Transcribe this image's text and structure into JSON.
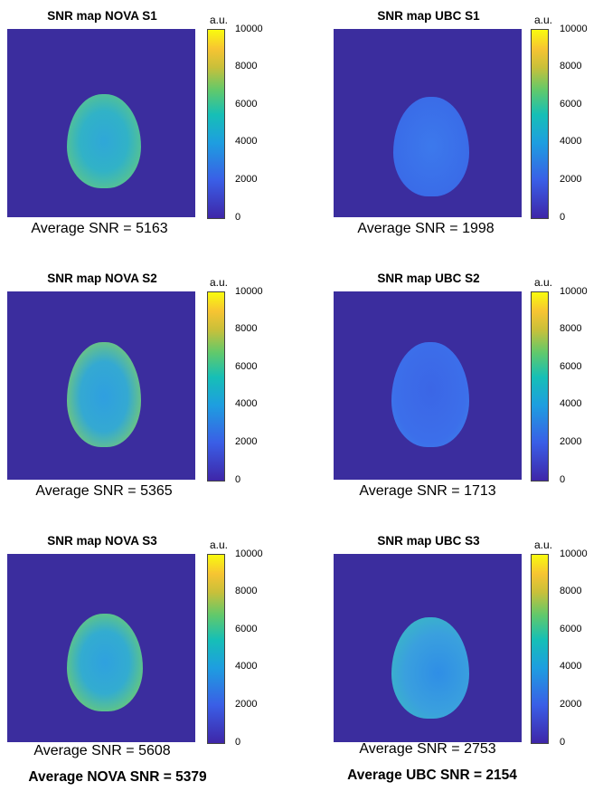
{
  "colorbar": {
    "unit": "a.u.",
    "ticks": [
      "10000",
      "8000",
      "6000",
      "4000",
      "2000",
      "0"
    ],
    "colors": [
      "#3e26a8",
      "#3a5ee6",
      "#1e9ee0",
      "#16bfb6",
      "#61c96b",
      "#c8c03a",
      "#f7c432",
      "#f9fb0e"
    ]
  },
  "panels": [
    {
      "title": "SNR map NOVA S1",
      "average": "Average SNR = 5163"
    },
    {
      "title": "SNR map UBC S1",
      "average": "Average SNR = 1998"
    },
    {
      "title": "SNR map NOVA S2",
      "average": "Average SNR = 5365"
    },
    {
      "title": "SNR map UBC S2",
      "average": "Average SNR = 1713"
    },
    {
      "title": "SNR map NOVA S3",
      "average": "Average SNR = 5608"
    },
    {
      "title": "SNR map UBC S3",
      "average": "Average SNR = 2753"
    }
  ],
  "summary": {
    "nova": "Average NOVA SNR = 5379",
    "ubc": "Average UBC SNR = 2154"
  }
}
